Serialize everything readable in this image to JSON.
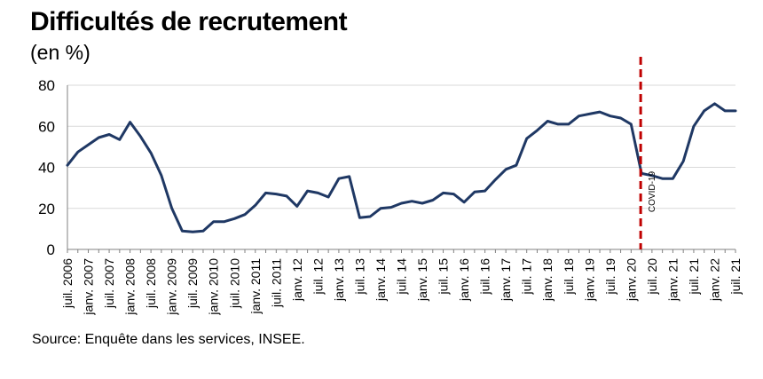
{
  "header": {
    "title": "Difficultés de recrutement",
    "unit": "(en %)"
  },
  "footer": {
    "source": "Source: Enquête dans les services, INSEE."
  },
  "colors": {
    "line": "#1f3864",
    "covid_line": "#c00000",
    "grid": "#d9d9d9",
    "axis": "#808080"
  },
  "chart_data": {
    "type": "line",
    "title": "Difficultés de recrutement",
    "ylabel": "(en %)",
    "xlabel": "",
    "ylim": [
      0,
      80
    ],
    "yticks": [
      0,
      20,
      40,
      60,
      80
    ],
    "grid": true,
    "legend": "none",
    "x_tick_labels": [
      "juil. 2006",
      "janv. 2007",
      "juil. 2007",
      "janv. 2008",
      "juil. 2008",
      "janv. 2009",
      "juil. 2009",
      "janv. 2010",
      "juil. 2010",
      "janv. 2011",
      "juil. 2011",
      "janv. 12",
      "juil. 12",
      "janv. 13",
      "juil. 13",
      "janv. 14",
      "juil. 14",
      "janv. 15",
      "juil. 15",
      "janv. 16",
      "juil. 16",
      "janv. 17",
      "juil. 17",
      "janv. 18",
      "juil. 18",
      "janv. 19",
      "juil. 19",
      "janv. 20",
      "juil. 20",
      "janv. 21",
      "juil. 21",
      "janv. 22",
      "juil. 21"
    ],
    "series": [
      {
        "name": "Difficultés de recrutement",
        "values": [
          41,
          47.5,
          51,
          54.5,
          56,
          53.5,
          62,
          55,
          47,
          36,
          20,
          9,
          8.5,
          9,
          13.5,
          13.5,
          15,
          17,
          21.5,
          27.5,
          27,
          26,
          21,
          28.5,
          27.5,
          25.5,
          34.5,
          35.5,
          15.5,
          16,
          20,
          20.5,
          22.5,
          23.5,
          22.5,
          24,
          27.5,
          27,
          23,
          28,
          28.5,
          34,
          39,
          41,
          54,
          58,
          62.5,
          61,
          61,
          65,
          66,
          67,
          65,
          64,
          61,
          37,
          36,
          34.5,
          34.5,
          43,
          60,
          67.5,
          71,
          67.5,
          67.5
        ]
      }
    ],
    "annotations": [
      {
        "text": "COVID-19",
        "x_index": 55,
        "style": "dashed-vertical"
      }
    ]
  }
}
